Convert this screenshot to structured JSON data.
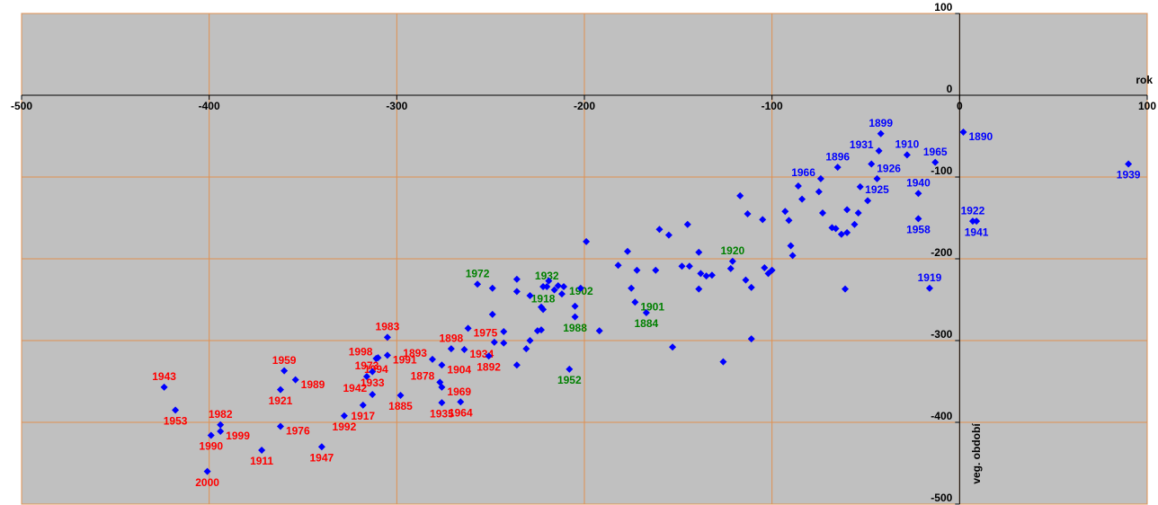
{
  "chart_data": {
    "type": "scatter",
    "x_title": "rok",
    "y_title": "veg. období",
    "xlim": [
      -500,
      100
    ],
    "ylim": [
      -500,
      100
    ],
    "xticks": [
      -500,
      -400,
      -300,
      -200,
      -100,
      0,
      100
    ],
    "yticks": [
      -500,
      -400,
      -300,
      -200,
      -100,
      0,
      100
    ],
    "grid": true,
    "marker_color": "#0000ff",
    "points": [
      {
        "x": -424,
        "y": -357,
        "label": "1943",
        "label_color": "#ff0000",
        "label_position": "above"
      },
      {
        "x": -418,
        "y": -385,
        "label": "1953",
        "label_color": "#ff0000",
        "label_position": "below"
      },
      {
        "x": -394,
        "y": -403,
        "label": "1982",
        "label_color": "#ff0000",
        "label_position": "above"
      },
      {
        "x": -399,
        "y": -416,
        "label": "1990",
        "label_color": "#ff0000",
        "label_position": "below"
      },
      {
        "x": -394,
        "y": -411,
        "label": "1999",
        "label_color": "#ff0000",
        "label_position": "right"
      },
      {
        "x": -401,
        "y": -460,
        "label": "2000",
        "label_color": "#ff0000",
        "label_position": "below"
      },
      {
        "x": -372,
        "y": -434,
        "label": "1911",
        "label_color": "#ff0000",
        "label_position": "below"
      },
      {
        "x": -362,
        "y": -405,
        "label": "1976",
        "label_color": "#ff0000",
        "label_position": "right"
      },
      {
        "x": -362,
        "y": -360,
        "label": "1921",
        "label_color": "#ff0000",
        "label_position": "below"
      },
      {
        "x": -360,
        "y": -337,
        "label": "1959",
        "label_color": "#ff0000",
        "label_position": "above"
      },
      {
        "x": -354,
        "y": -348,
        "label": "1989",
        "label_color": "#ff0000",
        "label_position": "right"
      },
      {
        "x": -340,
        "y": -430,
        "label": "1947",
        "label_color": "#ff0000",
        "label_position": "below"
      },
      {
        "x": -328,
        "y": -392,
        "label": "1992",
        "label_color": "#ff0000",
        "label_position": "below"
      },
      {
        "x": -318,
        "y": -379,
        "label": "1917",
        "label_color": "#ff0000",
        "label_position": "below"
      },
      {
        "x": -313,
        "y": -366,
        "label": "1942",
        "label_color": "#ff0000",
        "label_position": "left"
      },
      {
        "x": -316,
        "y": -344,
        "label": "1973",
        "label_color": "#ff0000",
        "label_position": "above"
      },
      {
        "x": -310,
        "y": -321,
        "label": "1998",
        "label_color": "#ff0000",
        "label_position": "left"
      },
      {
        "x": -305,
        "y": -296,
        "label": "1983",
        "label_color": "#ff0000",
        "label_position": "above"
      },
      {
        "x": -305,
        "y": -318,
        "label": "1991",
        "label_color": "#ff0000",
        "label_position": "right"
      },
      {
        "x": -311,
        "y": -322,
        "label": "1994",
        "label_color": "#ff0000",
        "label_position": "below"
      },
      {
        "x": -313,
        "y": -338,
        "label": "1933",
        "label_color": "#ff0000",
        "label_position": "below"
      },
      {
        "x": -298,
        "y": -367,
        "label": "1885",
        "label_color": "#ff0000",
        "label_position": "below"
      },
      {
        "x": -276,
        "y": -376,
        "label": "1935",
        "label_color": "#ff0000",
        "label_position": "below"
      },
      {
        "x": -277,
        "y": -351,
        "label": "1878",
        "label_color": "#ff0000",
        "label_position": "left"
      },
      {
        "x": -281,
        "y": -323,
        "label": "1893",
        "label_color": "#ff0000",
        "label_position": "left"
      },
      {
        "x": -271,
        "y": -310,
        "label": "1898",
        "label_color": "#ff0000",
        "label_position": "above"
      },
      {
        "x": -276,
        "y": -330,
        "label": "1904",
        "label_color": "#ff0000",
        "label_position": "right"
      },
      {
        "x": -264,
        "y": -311,
        "label": "1934",
        "label_color": "#ff0000",
        "label_position": "right"
      },
      {
        "x": -276,
        "y": -357,
        "label": "1969",
        "label_color": "#ff0000",
        "label_position": "right"
      },
      {
        "x": -266,
        "y": -375,
        "label": "1964",
        "label_color": "#ff0000",
        "label_position": "below"
      },
      {
        "x": -251,
        "y": -319,
        "label": "1892",
        "label_color": "#ff0000",
        "label_position": "below"
      },
      {
        "x": -262,
        "y": -285,
        "label": "1975",
        "label_color": "#ff0000",
        "label_position": "right"
      },
      {
        "x": -257,
        "y": -231,
        "label": "1972",
        "label_color": "#008000",
        "label_position": "above"
      },
      {
        "x": -222,
        "y": -262,
        "label": "1918",
        "label_color": "#008000",
        "label_position": "above"
      },
      {
        "x": -220,
        "y": -234,
        "label": "1932",
        "label_color": "#008000",
        "label_position": "above"
      },
      {
        "x": -211,
        "y": -234,
        "label": "1902",
        "label_color": "#008000",
        "label_position": "right"
      },
      {
        "x": -205,
        "y": -271,
        "label": "1988",
        "label_color": "#008000",
        "label_position": "below"
      },
      {
        "x": -208,
        "y": -335,
        "label": "1952",
        "label_color": "#008000",
        "label_position": "below"
      },
      {
        "x": -173,
        "y": -253,
        "label": "1901",
        "label_color": "#008000",
        "label_position": "right"
      },
      {
        "x": -167,
        "y": -266,
        "label": "1884",
        "label_color": "#008000",
        "label_position": "below"
      },
      {
        "x": -121,
        "y": -203,
        "label": "1920",
        "label_color": "#008000",
        "label_position": "above"
      },
      {
        "x": -42,
        "y": -47,
        "label": "1899",
        "label_color": "#0000ff",
        "label_position": "above"
      },
      {
        "x": 2,
        "y": -45,
        "label": "1890",
        "label_color": "#0000ff",
        "label_position": "right"
      },
      {
        "x": -28,
        "y": -73,
        "label": "1910",
        "label_color": "#0000ff",
        "label_position": "above"
      },
      {
        "x": -43,
        "y": -68,
        "label": "1931",
        "label_color": "#0000ff",
        "label_position": "left"
      },
      {
        "x": -13,
        "y": -82,
        "label": "1965",
        "label_color": "#0000ff",
        "label_position": "above"
      },
      {
        "x": -65,
        "y": -88,
        "label": "1896",
        "label_color": "#0000ff",
        "label_position": "above"
      },
      {
        "x": -47,
        "y": -84,
        "label": "1926",
        "label_color": "#0000ff",
        "label_position": "right"
      },
      {
        "x": -74,
        "y": -102,
        "label": "1966",
        "label_color": "#0000ff",
        "label_position": "left"
      },
      {
        "x": -22,
        "y": -120,
        "label": "1940",
        "label_color": "#0000ff",
        "label_position": "above"
      },
      {
        "x": -44,
        "y": -102,
        "label": "1925",
        "label_color": "#0000ff",
        "label_position": "below"
      },
      {
        "x": 7,
        "y": -154,
        "label": "1922",
        "label_color": "#0000ff",
        "label_position": "above"
      },
      {
        "x": 9,
        "y": -154,
        "label": "1941",
        "label_color": "#0000ff",
        "label_position": "below"
      },
      {
        "x": -22,
        "y": -151,
        "label": "1958",
        "label_color": "#0000ff",
        "label_position": "below"
      },
      {
        "x": -16,
        "y": -236,
        "label": "1919",
        "label_color": "#0000ff",
        "label_position": "above"
      },
      {
        "x": 90,
        "y": -84,
        "label": "1939",
        "label_color": "#0000ff",
        "label_position": "below"
      },
      {
        "x": -236,
        "y": -225
      },
      {
        "x": -236,
        "y": -240
      },
      {
        "x": -229,
        "y": -245
      },
      {
        "x": -222,
        "y": -234
      },
      {
        "x": -219,
        "y": -227
      },
      {
        "x": -216,
        "y": -238
      },
      {
        "x": -214,
        "y": -233
      },
      {
        "x": -212,
        "y": -243
      },
      {
        "x": -223,
        "y": -259
      },
      {
        "x": -223,
        "y": -287
      },
      {
        "x": -225,
        "y": -288
      },
      {
        "x": -229,
        "y": -300
      },
      {
        "x": -231,
        "y": -310
      },
      {
        "x": -236,
        "y": -330
      },
      {
        "x": -243,
        "y": -289
      },
      {
        "x": -243,
        "y": -303
      },
      {
        "x": -248,
        "y": -302
      },
      {
        "x": -249,
        "y": -268
      },
      {
        "x": -249,
        "y": -236
      },
      {
        "x": -205,
        "y": -258
      },
      {
        "x": -202,
        "y": -236
      },
      {
        "x": -199,
        "y": -179
      },
      {
        "x": -192,
        "y": -288
      },
      {
        "x": -182,
        "y": -208
      },
      {
        "x": -177,
        "y": -191
      },
      {
        "x": -172,
        "y": -214
      },
      {
        "x": -175,
        "y": -236
      },
      {
        "x": -162,
        "y": -214
      },
      {
        "x": -160,
        "y": -164
      },
      {
        "x": -155,
        "y": -171
      },
      {
        "x": -153,
        "y": -308
      },
      {
        "x": -148,
        "y": -209
      },
      {
        "x": -145,
        "y": -158
      },
      {
        "x": -144,
        "y": -209
      },
      {
        "x": -139,
        "y": -192
      },
      {
        "x": -138,
        "y": -218
      },
      {
        "x": -139,
        "y": -237
      },
      {
        "x": -135,
        "y": -221
      },
      {
        "x": -132,
        "y": -220
      },
      {
        "x": -126,
        "y": -326
      },
      {
        "x": -122,
        "y": -212
      },
      {
        "x": -117,
        "y": -123
      },
      {
        "x": -114,
        "y": -226
      },
      {
        "x": -113,
        "y": -145
      },
      {
        "x": -111,
        "y": -235
      },
      {
        "x": -111,
        "y": -298
      },
      {
        "x": -105,
        "y": -152
      },
      {
        "x": -104,
        "y": -211
      },
      {
        "x": -102,
        "y": -218
      },
      {
        "x": -100,
        "y": -214
      },
      {
        "x": -93,
        "y": -142
      },
      {
        "x": -91,
        "y": -153
      },
      {
        "x": -90,
        "y": -184
      },
      {
        "x": -89,
        "y": -196
      },
      {
        "x": -86,
        "y": -111
      },
      {
        "x": -84,
        "y": -127
      },
      {
        "x": -75,
        "y": -118
      },
      {
        "x": -73,
        "y": -144
      },
      {
        "x": -68,
        "y": -162
      },
      {
        "x": -63,
        "y": -170
      },
      {
        "x": -60,
        "y": -140
      },
      {
        "x": -60,
        "y": -168
      },
      {
        "x": -56,
        "y": -158
      },
      {
        "x": -54,
        "y": -144
      },
      {
        "x": -49,
        "y": -129
      },
      {
        "x": -61,
        "y": -237
      },
      {
        "x": -53,
        "y": -112
      },
      {
        "x": -66,
        "y": -163
      }
    ]
  }
}
